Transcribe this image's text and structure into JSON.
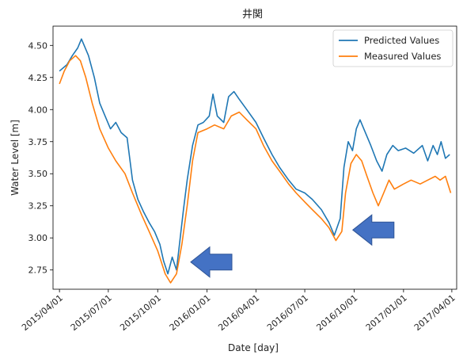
{
  "chart_data": {
    "type": "line",
    "title": "井関",
    "xlabel": "Date [day]",
    "ylabel": "Water Level [m]",
    "x_axis_type": "date",
    "xlim": [
      "2015-03-20",
      "2017-04-10"
    ],
    "ylim": [
      2.6,
      4.65
    ],
    "x_ticks": [
      "2015/04/01",
      "2015/07/01",
      "2015/10/01",
      "2016/01/01",
      "2016/04/01",
      "2016/07/01",
      "2016/10/01",
      "2017/01/01",
      "2017/04/01"
    ],
    "x_tick_dates": [
      "2015-04-01",
      "2015-07-01",
      "2015-10-01",
      "2016-01-01",
      "2016-04-01",
      "2016-07-01",
      "2016-10-01",
      "2017-01-01",
      "2017-04-01"
    ],
    "y_ticks": [
      "2.75",
      "3.00",
      "3.25",
      "3.50",
      "3.75",
      "4.00",
      "4.25",
      "4.50"
    ],
    "y_tick_values": [
      2.75,
      3.0,
      3.25,
      3.5,
      3.75,
      4.0,
      4.25,
      4.5
    ],
    "grid": false,
    "legend_position": "top-right",
    "series": [
      {
        "name": "Predicted Values",
        "color": "#1f77b4",
        "points": [
          [
            "2015-04-01",
            4.3
          ],
          [
            "2015-04-15",
            4.35
          ],
          [
            "2015-04-25",
            4.42
          ],
          [
            "2015-05-05",
            4.48
          ],
          [
            "2015-05-12",
            4.55
          ],
          [
            "2015-05-25",
            4.42
          ],
          [
            "2015-06-05",
            4.25
          ],
          [
            "2015-06-15",
            4.05
          ],
          [
            "2015-06-25",
            3.95
          ],
          [
            "2015-07-05",
            3.85
          ],
          [
            "2015-07-15",
            3.9
          ],
          [
            "2015-07-25",
            3.82
          ],
          [
            "2015-08-05",
            3.78
          ],
          [
            "2015-08-15",
            3.45
          ],
          [
            "2015-08-25",
            3.3
          ],
          [
            "2015-09-05",
            3.2
          ],
          [
            "2015-09-15",
            3.12
          ],
          [
            "2015-09-25",
            3.05
          ],
          [
            "2015-10-05",
            2.95
          ],
          [
            "2015-10-12",
            2.82
          ],
          [
            "2015-10-20",
            2.72
          ],
          [
            "2015-10-28",
            2.85
          ],
          [
            "2015-11-05",
            2.75
          ],
          [
            "2015-11-12",
            3.0
          ],
          [
            "2015-11-18",
            3.22
          ],
          [
            "2015-11-25",
            3.45
          ],
          [
            "2015-12-05",
            3.72
          ],
          [
            "2015-12-15",
            3.88
          ],
          [
            "2015-12-25",
            3.9
          ],
          [
            "2016-01-05",
            3.95
          ],
          [
            "2016-01-12",
            4.12
          ],
          [
            "2016-01-20",
            3.95
          ],
          [
            "2016-02-01",
            3.9
          ],
          [
            "2016-02-10",
            4.1
          ],
          [
            "2016-02-20",
            4.14
          ],
          [
            "2016-03-01",
            4.08
          ],
          [
            "2016-03-15",
            4.0
          ],
          [
            "2016-04-01",
            3.9
          ],
          [
            "2016-04-15",
            3.78
          ],
          [
            "2016-05-01",
            3.65
          ],
          [
            "2016-05-15",
            3.55
          ],
          [
            "2016-06-01",
            3.45
          ],
          [
            "2016-06-15",
            3.38
          ],
          [
            "2016-07-01",
            3.35
          ],
          [
            "2016-07-15",
            3.3
          ],
          [
            "2016-08-01",
            3.22
          ],
          [
            "2016-08-15",
            3.12
          ],
          [
            "2016-08-25",
            3.02
          ],
          [
            "2016-09-05",
            3.15
          ],
          [
            "2016-09-12",
            3.55
          ],
          [
            "2016-09-20",
            3.75
          ],
          [
            "2016-09-28",
            3.68
          ],
          [
            "2016-10-05",
            3.85
          ],
          [
            "2016-10-12",
            3.92
          ],
          [
            "2016-10-22",
            3.82
          ],
          [
            "2016-11-01",
            3.72
          ],
          [
            "2016-11-12",
            3.6
          ],
          [
            "2016-11-22",
            3.52
          ],
          [
            "2016-12-01",
            3.65
          ],
          [
            "2016-12-12",
            3.72
          ],
          [
            "2016-12-22",
            3.68
          ],
          [
            "2017-01-05",
            3.7
          ],
          [
            "2017-01-20",
            3.66
          ],
          [
            "2017-02-05",
            3.72
          ],
          [
            "2017-02-15",
            3.6
          ],
          [
            "2017-02-25",
            3.72
          ],
          [
            "2017-03-05",
            3.65
          ],
          [
            "2017-03-12",
            3.75
          ],
          [
            "2017-03-20",
            3.62
          ],
          [
            "2017-03-28",
            3.65
          ]
        ]
      },
      {
        "name": "Measured Values",
        "color": "#ff7f0e",
        "points": [
          [
            "2015-04-01",
            4.2
          ],
          [
            "2015-04-10",
            4.3
          ],
          [
            "2015-04-20",
            4.38
          ],
          [
            "2015-05-01",
            4.42
          ],
          [
            "2015-05-10",
            4.38
          ],
          [
            "2015-05-20",
            4.25
          ],
          [
            "2015-06-01",
            4.05
          ],
          [
            "2015-06-15",
            3.85
          ],
          [
            "2015-07-01",
            3.7
          ],
          [
            "2015-07-15",
            3.6
          ],
          [
            "2015-08-01",
            3.5
          ],
          [
            "2015-08-15",
            3.35
          ],
          [
            "2015-09-01",
            3.18
          ],
          [
            "2015-09-15",
            3.05
          ],
          [
            "2015-10-01",
            2.9
          ],
          [
            "2015-10-15",
            2.72
          ],
          [
            "2015-10-25",
            2.65
          ],
          [
            "2015-11-05",
            2.72
          ],
          [
            "2015-11-15",
            2.95
          ],
          [
            "2015-11-25",
            3.25
          ],
          [
            "2015-12-05",
            3.6
          ],
          [
            "2015-12-15",
            3.82
          ],
          [
            "2016-01-01",
            3.85
          ],
          [
            "2016-01-15",
            3.88
          ],
          [
            "2016-02-01",
            3.85
          ],
          [
            "2016-02-15",
            3.95
          ],
          [
            "2016-03-01",
            3.98
          ],
          [
            "2016-03-15",
            3.92
          ],
          [
            "2016-04-01",
            3.85
          ],
          [
            "2016-04-15",
            3.72
          ],
          [
            "2016-05-01",
            3.6
          ],
          [
            "2016-05-15",
            3.52
          ],
          [
            "2016-06-01",
            3.42
          ],
          [
            "2016-06-15",
            3.35
          ],
          [
            "2016-07-01",
            3.28
          ],
          [
            "2016-07-15",
            3.22
          ],
          [
            "2016-08-01",
            3.15
          ],
          [
            "2016-08-15",
            3.08
          ],
          [
            "2016-08-28",
            2.98
          ],
          [
            "2016-09-08",
            3.05
          ],
          [
            "2016-09-15",
            3.35
          ],
          [
            "2016-09-25",
            3.58
          ],
          [
            "2016-10-05",
            3.65
          ],
          [
            "2016-10-15",
            3.6
          ],
          [
            "2016-10-25",
            3.48
          ],
          [
            "2016-11-05",
            3.35
          ],
          [
            "2016-11-15",
            3.25
          ],
          [
            "2016-11-25",
            3.35
          ],
          [
            "2016-12-05",
            3.45
          ],
          [
            "2016-12-15",
            3.38
          ],
          [
            "2017-01-01",
            3.42
          ],
          [
            "2017-01-15",
            3.45
          ],
          [
            "2017-02-01",
            3.42
          ],
          [
            "2017-02-15",
            3.45
          ],
          [
            "2017-03-01",
            3.48
          ],
          [
            "2017-03-10",
            3.45
          ],
          [
            "2017-03-20",
            3.48
          ],
          [
            "2017-03-30",
            3.35
          ]
        ]
      }
    ],
    "annotations": [
      {
        "type": "arrow",
        "direction": "left",
        "color": "#4472c4",
        "target": [
          "2015-11-08",
          2.75
        ]
      },
      {
        "type": "arrow",
        "direction": "left",
        "color": "#4472c4",
        "target": [
          "2016-09-05",
          3.0
        ]
      }
    ]
  }
}
